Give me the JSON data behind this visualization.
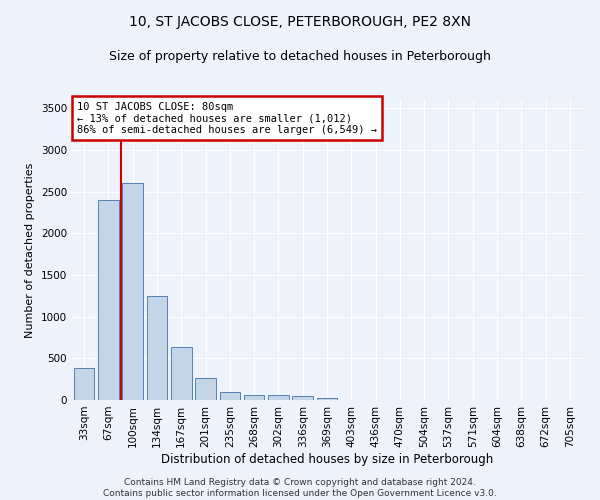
{
  "title": "10, ST JACOBS CLOSE, PETERBOROUGH, PE2 8XN",
  "subtitle": "Size of property relative to detached houses in Peterborough",
  "xlabel": "Distribution of detached houses by size in Peterborough",
  "ylabel": "Number of detached properties",
  "footer_line1": "Contains HM Land Registry data © Crown copyright and database right 2024.",
  "footer_line2": "Contains public sector information licensed under the Open Government Licence v3.0.",
  "categories": [
    "33sqm",
    "67sqm",
    "100sqm",
    "134sqm",
    "167sqm",
    "201sqm",
    "235sqm",
    "268sqm",
    "302sqm",
    "336sqm",
    "369sqm",
    "403sqm",
    "436sqm",
    "470sqm",
    "504sqm",
    "537sqm",
    "571sqm",
    "604sqm",
    "638sqm",
    "672sqm",
    "705sqm"
  ],
  "bar_values": [
    380,
    2400,
    2600,
    1250,
    640,
    260,
    100,
    60,
    60,
    50,
    30,
    0,
    0,
    0,
    0,
    0,
    0,
    0,
    0,
    0,
    0
  ],
  "bar_color": "#c5d5e8",
  "bar_edge_color": "#5580b0",
  "property_line_x": 1.5,
  "property_label": "10 ST JACOBS CLOSE: 80sqm",
  "annotation_line1": "← 13% of detached houses are smaller (1,012)",
  "annotation_line2": "86% of semi-detached houses are larger (6,549) →",
  "annotation_box_color": "#ffffff",
  "annotation_box_edgecolor": "#cc0000",
  "vertical_line_color": "#cc0000",
  "ylim": [
    0,
    3600
  ],
  "yticks": [
    0,
    500,
    1000,
    1500,
    2000,
    2500,
    3000,
    3500
  ],
  "background_color": "#eef2fb",
  "axes_background": "#eef2fb",
  "title_fontsize": 10,
  "subtitle_fontsize": 9,
  "xlabel_fontsize": 8.5,
  "ylabel_fontsize": 8,
  "footer_fontsize": 6.5
}
